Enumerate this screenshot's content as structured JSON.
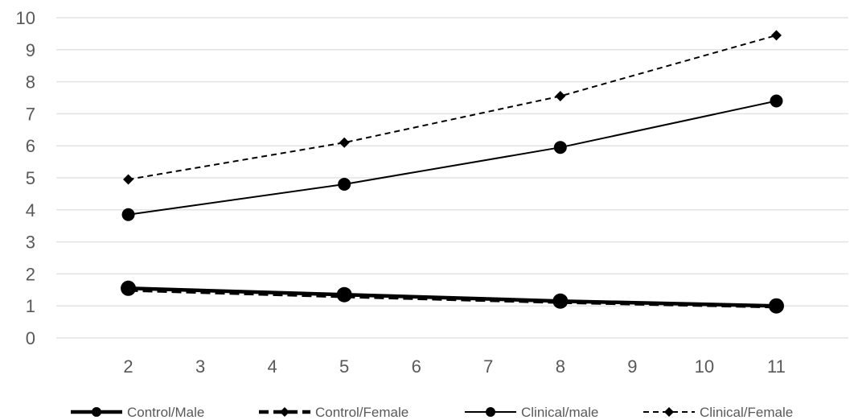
{
  "chart_data": {
    "type": "line",
    "title": "",
    "xlabel": "",
    "ylabel": "",
    "x": [
      2,
      5,
      8,
      11
    ],
    "xticks": [
      2,
      3,
      4,
      5,
      6,
      7,
      8,
      9,
      10,
      11
    ],
    "yticks": [
      0,
      1,
      2,
      3,
      4,
      5,
      6,
      7,
      8,
      9,
      10
    ],
    "ylim": [
      0,
      10
    ],
    "grid": "horizontal",
    "legend_position": "bottom",
    "series": [
      {
        "name": "Control/Male",
        "values": [
          1.55,
          1.35,
          1.15,
          1.0
        ],
        "line": "solid-thick",
        "marker": "circle",
        "color": "#000000"
      },
      {
        "name": "Control/Female",
        "values": [
          1.5,
          1.3,
          1.12,
          0.98
        ],
        "line": "dashed-thick",
        "marker": "diamond",
        "color": "#000000"
      },
      {
        "name": "Clinical/male",
        "values": [
          3.85,
          4.8,
          5.95,
          7.4
        ],
        "line": "solid",
        "marker": "circle",
        "color": "#000000"
      },
      {
        "name": "Clinical/Female",
        "values": [
          4.95,
          6.1,
          7.55,
          9.45
        ],
        "line": "dashed",
        "marker": "diamond",
        "color": "#000000"
      }
    ]
  }
}
